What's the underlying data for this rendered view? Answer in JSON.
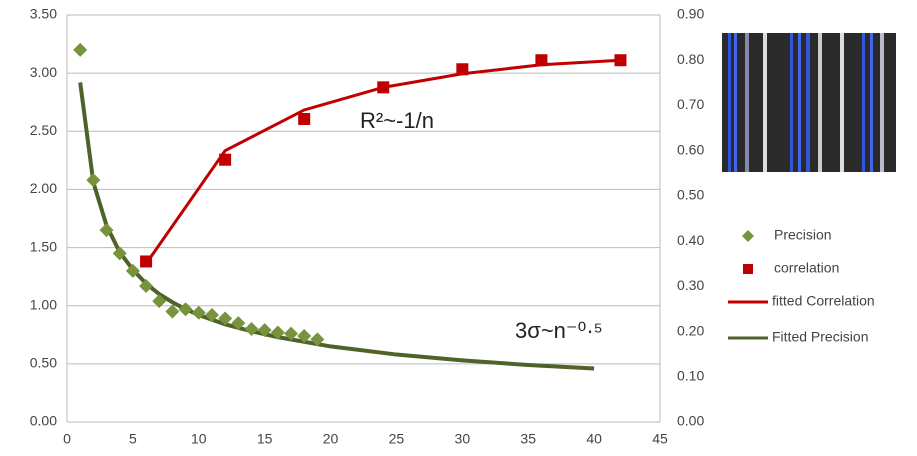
{
  "chart_data": {
    "type": "scatter",
    "annotations": [
      "R²~-1/n",
      "3σ~n⁻⁰·⁵"
    ],
    "xlim": [
      0,
      45
    ],
    "xticks": [
      0,
      5,
      10,
      15,
      20,
      25,
      30,
      35,
      40,
      45
    ],
    "ylim": [
      0,
      3.5
    ],
    "yticks": [
      {
        "value": 0,
        "label": "0.00"
      },
      {
        "value": 0.5,
        "label": "0.50"
      },
      {
        "value": 1,
        "label": "1.00"
      },
      {
        "value": 1.5,
        "label": "1.50"
      },
      {
        "value": 2,
        "label": "2.00"
      },
      {
        "value": 2.5,
        "label": "2.50"
      },
      {
        "value": 3,
        "label": "3.00"
      },
      {
        "value": 3.5,
        "label": "3.50"
      }
    ],
    "y2lim": [
      0,
      0.9
    ],
    "y2ticks": [
      {
        "value": 0,
        "label": "0.00"
      },
      {
        "value": 0.1,
        "label": "0.10"
      },
      {
        "value": 0.2,
        "label": "0.20"
      },
      {
        "value": 0.3,
        "label": "0.30"
      },
      {
        "value": 0.4,
        "label": "0.40"
      },
      {
        "value": 0.5,
        "label": "0.50"
      },
      {
        "value": 0.6,
        "label": "0.60"
      },
      {
        "value": 0.7,
        "label": "0.70"
      },
      {
        "value": 0.8,
        "label": "0.80"
      },
      {
        "value": 0.9,
        "label": "0.90"
      }
    ],
    "grid": true,
    "legend": "right",
    "series": [
      {
        "name": "Precision",
        "color": "#77933c",
        "marker": "diamond",
        "x": [
          1,
          2,
          3,
          4,
          5,
          6,
          7,
          8,
          9,
          10,
          11,
          12,
          13,
          14,
          15,
          16,
          17,
          18,
          19
        ],
        "values": [
          3.2,
          2.08,
          1.65,
          1.45,
          1.3,
          1.17,
          1.04,
          0.95,
          0.97,
          0.94,
          0.92,
          0.89,
          0.85,
          0.8,
          0.79,
          0.77,
          0.76,
          0.74,
          0.71
        ]
      },
      {
        "name": "correlation",
        "color": "#c00000",
        "marker": "square",
        "axis": "y2",
        "x": [
          6,
          12,
          18,
          24,
          30,
          36,
          42
        ],
        "values": [
          0.355,
          0.58,
          0.67,
          0.74,
          0.78,
          0.8,
          0.8
        ]
      },
      {
        "name": "fitted Correlation",
        "color": "#c00000",
        "marker": "line",
        "axis": "y2",
        "x": [
          6,
          12,
          18,
          24,
          30,
          36,
          42
        ],
        "values": [
          0.35,
          0.6,
          0.69,
          0.74,
          0.77,
          0.79,
          0.8
        ]
      },
      {
        "name": "Fitted Precision",
        "color": "#4f6228",
        "marker": "line",
        "x": [
          1,
          2,
          3,
          4,
          5,
          6,
          7,
          8,
          9,
          10,
          12,
          14,
          16,
          18,
          20,
          25,
          30,
          35,
          40
        ],
        "values": [
          2.92,
          2.06,
          1.69,
          1.46,
          1.31,
          1.19,
          1.1,
          1.03,
          0.97,
          0.92,
          0.84,
          0.78,
          0.73,
          0.69,
          0.65,
          0.58,
          0.53,
          0.49,
          0.46
        ]
      }
    ]
  }
}
